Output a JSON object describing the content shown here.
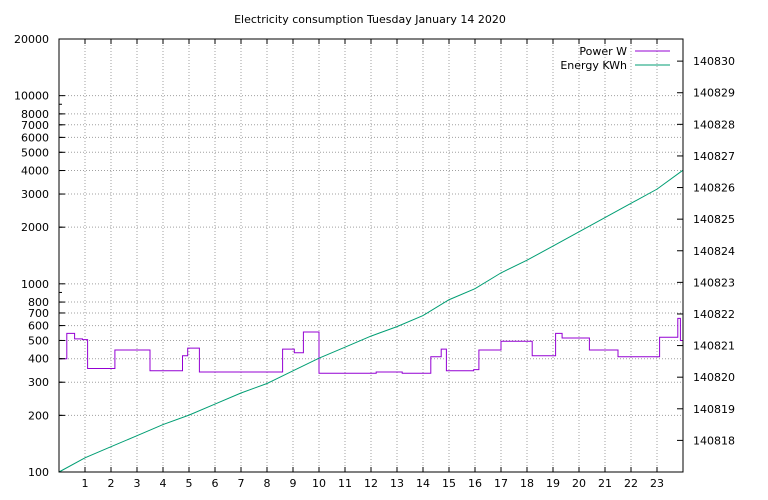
{
  "chart_data": {
    "type": "line",
    "title": "Electricity consumption Tuesday January 14 2020",
    "xlabel": "",
    "ylabel": "",
    "x_range": [
      0,
      24
    ],
    "x_ticks": [
      1,
      2,
      3,
      4,
      5,
      6,
      7,
      8,
      9,
      10,
      11,
      12,
      13,
      14,
      15,
      16,
      17,
      18,
      19,
      20,
      21,
      22,
      23
    ],
    "y_left": {
      "scale": "log",
      "range": [
        100,
        20000
      ],
      "ticks": [
        {
          "value": 100,
          "label": "100"
        },
        {
          "value": 200,
          "label": "200"
        },
        {
          "value": 300,
          "label": "300"
        },
        {
          "value": 400,
          "label": "400"
        },
        {
          "value": 500,
          "label": "500"
        },
        {
          "value": 600,
          "label": "600"
        },
        {
          "value": 700,
          "label": "700"
        },
        {
          "value": 800,
          "label": "800"
        },
        {
          "value": 1000,
          "label": "1000"
        },
        {
          "value": 2000,
          "label": "2000"
        },
        {
          "value": 3000,
          "label": "3000"
        },
        {
          "value": 4000,
          "label": "4000"
        },
        {
          "value": 5000,
          "label": "5000"
        },
        {
          "value": 6000,
          "label": "6000"
        },
        {
          "value": 7000,
          "label": "7000"
        },
        {
          "value": 8000,
          "label": "8000"
        },
        {
          "value": 10000,
          "label": "10000"
        },
        {
          "value": 20000,
          "label": "20000"
        }
      ]
    },
    "y_right": {
      "scale": "linear",
      "range": [
        140817,
        140830.7
      ],
      "ticks": [
        140818,
        140819,
        140820,
        140821,
        140822,
        140823,
        140824,
        140825,
        140826,
        140827,
        140828,
        140829,
        140830
      ]
    },
    "grid": true,
    "legend": "top-right",
    "series": [
      {
        "name": "Power W",
        "axis": "left",
        "step": true,
        "color": "#9400d3",
        "x": [
          0,
          0.3,
          0.6,
          0.9,
          1.1,
          2.15,
          3.5,
          4.75,
          4.95,
          5.4,
          8.6,
          9.05,
          9.4,
          10.0,
          12.2,
          13.2,
          14.3,
          14.7,
          14.9,
          15.95,
          16.15,
          17.0,
          18.2,
          19.1,
          19.35,
          20.4,
          21.5,
          23.1,
          23.8,
          23.9,
          24.0
        ],
        "values": [
          400,
          545,
          510,
          505,
          355,
          445,
          345,
          415,
          455,
          340,
          450,
          430,
          555,
          335,
          340,
          335,
          410,
          450,
          345,
          350,
          445,
          495,
          415,
          545,
          515,
          445,
          410,
          520,
          655,
          500,
          500
        ]
      },
      {
        "name": "Energy KWh",
        "axis": "right",
        "step": false,
        "color": "#009e73",
        "x": [
          0,
          1,
          2,
          3,
          4,
          5,
          6,
          7,
          8,
          9,
          10,
          11,
          12,
          13,
          14,
          15,
          16,
          17,
          18,
          19,
          20,
          21,
          22,
          23,
          24
        ],
        "values": [
          140817.0,
          140817.45,
          140817.8,
          140818.15,
          140818.5,
          140818.8,
          140819.15,
          140819.5,
          140819.8,
          140820.2,
          140820.6,
          140820.95,
          140821.3,
          140821.6,
          140821.95,
          140822.45,
          140822.8,
          140823.3,
          140823.7,
          140824.15,
          140824.6,
          140825.05,
          140825.5,
          140825.95,
          140826.55
        ]
      }
    ]
  }
}
